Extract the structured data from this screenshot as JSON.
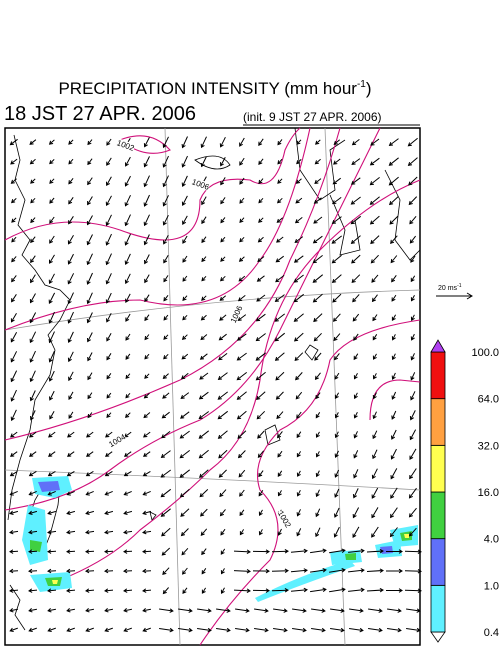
{
  "header": {
    "title": "PRECIPITATION INTENSITY (mm hour",
    "title_sup": "-1",
    "title_end": ")",
    "valid": "18 JST 27 APR. 2006",
    "init": "(init. 9 JST 27 APR. 2006)"
  },
  "map": {
    "isobar_labels": [
      "1002",
      "1006",
      "1006",
      "1004",
      "1002"
    ]
  },
  "wind_scale": {
    "label": "20 ms",
    "sup": "-1"
  },
  "colorbar": {
    "labels": [
      "0.4",
      "1.0",
      "4.0",
      "16.0",
      "32.0",
      "64.0",
      "100.0"
    ],
    "colors": [
      "#ffffff",
      "#5ff0ff",
      "#6070f8",
      "#40d040",
      "#ffff50",
      "#ffa040",
      "#f01010",
      "#b040f0"
    ]
  }
}
